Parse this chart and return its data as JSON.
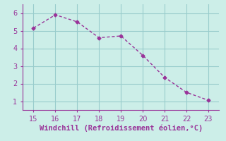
{
  "x": [
    15,
    16,
    17,
    18,
    19,
    20,
    21,
    22,
    23
  ],
  "y": [
    5.15,
    5.9,
    5.5,
    4.6,
    4.7,
    3.6,
    2.35,
    1.5,
    1.05
  ],
  "xlim": [
    14.5,
    23.5
  ],
  "ylim": [
    0.5,
    6.5
  ],
  "xticks": [
    15,
    16,
    17,
    18,
    19,
    20,
    21,
    22,
    23
  ],
  "yticks": [
    1,
    2,
    3,
    4,
    5,
    6
  ],
  "xlabel": "Windchill (Refroidissement éolien,°C)",
  "line_color": "#993399",
  "marker": "D",
  "marker_size": 2.5,
  "background_color": "#cceee8",
  "grid_color": "#99cccc",
  "xlabel_fontsize": 7.5,
  "tick_fontsize": 7,
  "tick_color": "#993399",
  "xlabel_color": "#993399",
  "spine_color": "#993399",
  "linewidth": 1.0
}
